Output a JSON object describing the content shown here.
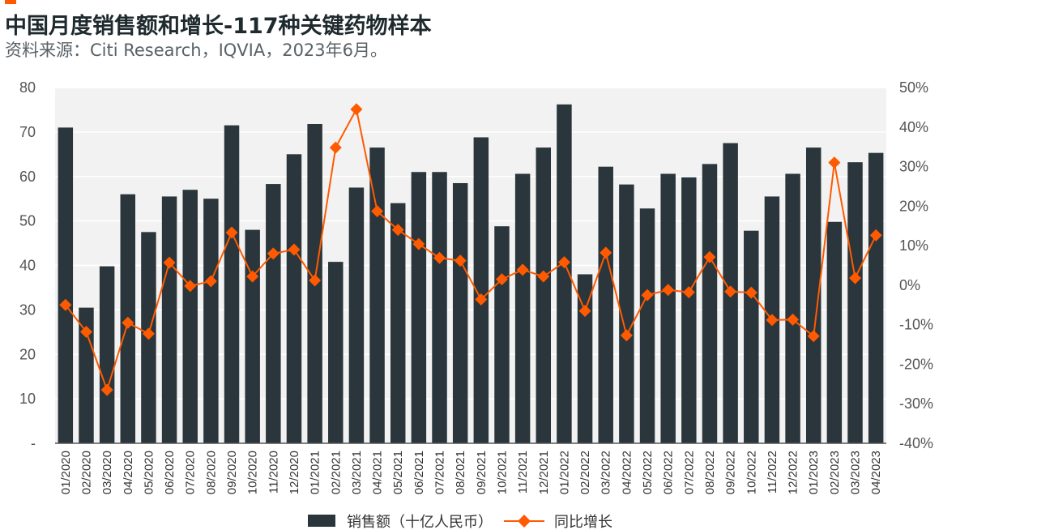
{
  "header": {
    "title": "中国月度销售额和增长-117种关键药物样本",
    "subtitle": "资料来源：Citi Research，IQVIA，2023年6月。"
  },
  "colors": {
    "accent": "#ff5a00",
    "bar": "#2a363b",
    "line": "#ff5a00",
    "plot_bg": "#f2f2f2"
  },
  "chart_data": {
    "type": "bar",
    "title": "中国月度销售额和增长-117种关键药物样本",
    "categories": [
      "01/2020",
      "02/2020",
      "03/2020",
      "04/2020",
      "05/2020",
      "06/2020",
      "07/2020",
      "08/2020",
      "09/2020",
      "10/2020",
      "11/2020",
      "12/2020",
      "01/2021",
      "02/2021",
      "03/2021",
      "04/2021",
      "05/2021",
      "06/2021",
      "07/2021",
      "08/2021",
      "09/2021",
      "10/2021",
      "11/2021",
      "12/2021",
      "01/2022",
      "02/2022",
      "03/2022",
      "04/2022",
      "05/2022",
      "06/2022",
      "07/2022",
      "08/2022",
      "09/2022",
      "10/2022",
      "11/2022",
      "12/2022",
      "01/2023",
      "02/2023",
      "03/2023",
      "04/2023"
    ],
    "series": [
      {
        "name": "销售额（十亿人民币）",
        "type": "bar",
        "axis": "left",
        "values": [
          71,
          30.5,
          39.8,
          56,
          47.5,
          55.5,
          57,
          55,
          71.5,
          48,
          58.3,
          65,
          71.8,
          40.8,
          57.5,
          66.5,
          54,
          61,
          61,
          58.5,
          68.8,
          48.8,
          60.6,
          66.5,
          76.2,
          38,
          62.2,
          58.2,
          52.8,
          60.6,
          59.8,
          62.8,
          67.5,
          47.8,
          55.5,
          60.6,
          66.5,
          49.8,
          63.2,
          65.3
        ]
      },
      {
        "name": "同比增长",
        "type": "line",
        "axis": "right",
        "values": [
          -5,
          -11.8,
          -26.5,
          -9.5,
          -12.3,
          5.7,
          -0.2,
          1,
          13.3,
          2.2,
          8,
          9,
          1.2,
          34.8,
          44.5,
          18.7,
          14,
          10.4,
          6.9,
          6.2,
          -3.6,
          1.5,
          3.9,
          2.2,
          5.8,
          -6.5,
          8.2,
          -12.7,
          -2.5,
          -1.2,
          -1.8,
          7.1,
          -1.6,
          -1.9,
          -8.8,
          -8.7,
          -12.9,
          31,
          1.8,
          12.6
        ]
      }
    ],
    "y_left": {
      "ticks": [
        "-",
        "10",
        "20",
        "30",
        "40",
        "50",
        "60",
        "70",
        "80"
      ],
      "ylim": [
        0,
        80
      ]
    },
    "y_right": {
      "ticks": [
        "-40%",
        "-30%",
        "-20%",
        "-10%",
        "0%",
        "10%",
        "20%",
        "30%",
        "40%",
        "50%"
      ],
      "ylim": [
        -40,
        50
      ]
    },
    "grid": true,
    "legend_position": "bottom"
  }
}
